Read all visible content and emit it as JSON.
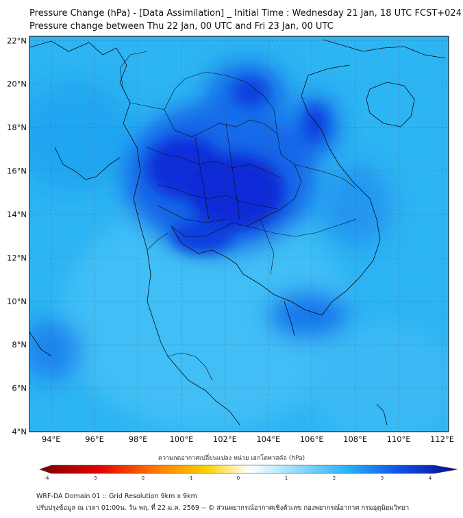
{
  "title": {
    "line1": "Pressure Change (hPa) - [Data Assimilation] _ Initial Time : Wednesday 21 Jan, 18 UTC FCST+024",
    "line2": "Pressure change between Thu 22 Jan, 00 UTC and Fri 23 Jan, 00 UTC"
  },
  "map": {
    "lat_labels": [
      "22°N",
      "20°N",
      "18°N",
      "16°N",
      "14°N",
      "12°N",
      "10°N",
      "8°N",
      "6°N",
      "4°N"
    ],
    "lon_labels": [
      "94°E",
      "96°E",
      "98°E",
      "100°E",
      "102°E",
      "104°E",
      "106°E",
      "108°E",
      "110°E",
      "112°E"
    ],
    "extent": {
      "lon_min": 93,
      "lon_max": 112.3,
      "lat_min": 4,
      "lat_max": 22.2
    },
    "background_color": "#2fb3f2",
    "strong_fall_color": "#0a2bd8"
  },
  "colorbar": {
    "label": "ความกดอากาศเปลี่ยนแปลง หน่วย เฮกโตพาสคัล (hPa)",
    "ticks": [
      "-4",
      "-3",
      "-2",
      "-1",
      "0",
      "1",
      "2",
      "3",
      "4"
    ],
    "min": -4,
    "max": 4,
    "colors": [
      "#7a0000",
      "#e10000",
      "#ff7a00",
      "#ffd200",
      "#ffffff",
      "#9fe0ff",
      "#25b2f5",
      "#1050e8",
      "#0a0a8a"
    ]
  },
  "footer": {
    "line1": "WRF-DA Domain 01 :: Grid Resolution 9km x 9km",
    "line2": "ปรับปรุงข้อมูล ณ เวลา 01:00น. วัน พฤ. ที่ 22 ม.ค. 2569 -- © ส่วนพยากรณ์อากาศเชิงตัวเลข กองพยากรณ์อากาศ กรมอุตุนิยมวิทยา"
  }
}
